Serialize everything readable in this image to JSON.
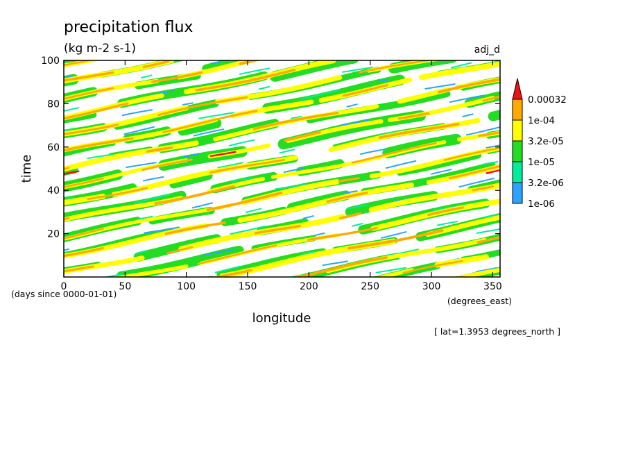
{
  "chart_data": {
    "type": "heatmap",
    "title": "precipitation flux",
    "units": "(kg m-2 s-1)",
    "experiment": "adj_d",
    "xlabel": "longitude",
    "x_units": "(degrees_east)",
    "ylabel": "time",
    "y_units": "(days since 0000-01-01)",
    "xlim": [
      0,
      356
    ],
    "ylim": [
      0,
      100
    ],
    "x_ticks": [
      0,
      50,
      100,
      150,
      200,
      250,
      300,
      350
    ],
    "y_ticks": [
      20,
      40,
      60,
      80,
      100
    ],
    "annotation": "[ lat=1.3953 degrees_north ]",
    "legend_position": "right",
    "color_levels": [
      {
        "label": "1e-06",
        "color": "#2aa4ff"
      },
      {
        "label": "3.2e-06",
        "color": "#00ee99"
      },
      {
        "label": "1e-05",
        "color": "#22dd22"
      },
      {
        "label": "3.2e-05",
        "color": "#ffff00"
      },
      {
        "label": "1e-04",
        "color": "#ffaa00"
      },
      {
        "label": "0.00032",
        "color": "#ee1111"
      }
    ],
    "pattern": {
      "description_hidden": true,
      "band_slope_days_per_degree": 0.115,
      "band_spacing_days": 7.8,
      "bands_starting_day": [
        -38,
        -30,
        -22,
        -14,
        -6,
        2,
        10,
        18,
        26,
        34,
        42,
        50,
        58,
        66,
        74,
        82,
        90,
        98
      ]
    }
  }
}
